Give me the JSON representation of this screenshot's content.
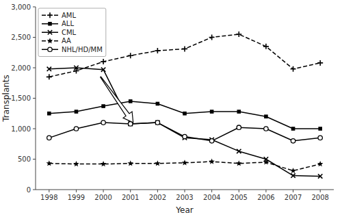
{
  "chart_data": {
    "type": "line",
    "xlabel": "Year",
    "ylabel": "Transplants",
    "x": [
      1998,
      1999,
      2000,
      2001,
      2002,
      2003,
      2004,
      2005,
      2006,
      2007,
      2008
    ],
    "series": [
      {
        "name": "AML",
        "color": "#000000",
        "marker": "plus",
        "line_style": "dashed",
        "values": [
          1850,
          1950,
          2100,
          2200,
          2280,
          2310,
          2500,
          2550,
          2350,
          1980,
          2080
        ]
      },
      {
        "name": "ALL",
        "color": "#000000",
        "marker": "square",
        "line_style": "solid",
        "values": [
          1250,
          1280,
          1370,
          1450,
          1410,
          1250,
          1280,
          1280,
          1200,
          1000,
          1000
        ]
      },
      {
        "name": "CML",
        "color": "#000000",
        "marker": "x",
        "line_style": "solid",
        "values": [
          1980,
          2000,
          1970,
          1080,
          1100,
          850,
          820,
          630,
          500,
          230,
          220
        ]
      },
      {
        "name": "AA",
        "color": "#000000",
        "marker": "star",
        "line_style": "dashed",
        "values": [
          430,
          420,
          420,
          430,
          430,
          440,
          460,
          430,
          450,
          310,
          420
        ]
      },
      {
        "name": "NHL/HD/MM",
        "color": "#000000",
        "marker": "circle",
        "line_style": "solid",
        "values": [
          850,
          1000,
          1100,
          1080,
          1100,
          870,
          800,
          1020,
          1000,
          800,
          850
        ]
      }
    ],
    "xlim": [
      1997.5,
      2008.5
    ],
    "xticks": [
      1998,
      1999,
      2000,
      2001,
      2002,
      2003,
      2004,
      2005,
      2006,
      2007,
      2008
    ],
    "ylim": [
      0,
      3000
    ],
    "yticks": [
      0,
      500,
      {
        "value": 1000,
        "label": "1,000"
      },
      {
        "value": 1500,
        "label": "1,500"
      },
      {
        "value": 2000,
        "label": "2,000"
      },
      {
        "value": 2500,
        "label": "2,500"
      },
      {
        "value": 3000,
        "label": "3,000"
      }
    ],
    "grid": false,
    "legend": "upper left",
    "arrow": {
      "x_from": 1999.9,
      "y_from": 1850,
      "x_to": 2001.1,
      "y_to": 1100
    }
  }
}
